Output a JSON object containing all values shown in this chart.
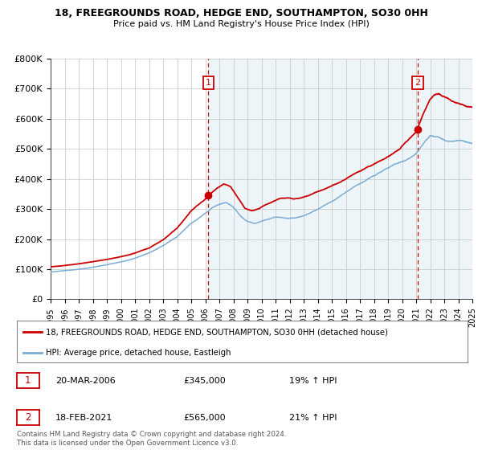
{
  "title": "18, FREEGROUNDS ROAD, HEDGE END, SOUTHAMPTON, SO30 0HH",
  "subtitle": "Price paid vs. HM Land Registry's House Price Index (HPI)",
  "legend_label_red": "18, FREEGROUNDS ROAD, HEDGE END, SOUTHAMPTON, SO30 0HH (detached house)",
  "legend_label_blue": "HPI: Average price, detached house, Eastleigh",
  "annotation1_date": "20-MAR-2006",
  "annotation1_price": "£345,000",
  "annotation1_hpi": "19% ↑ HPI",
  "annotation2_date": "18-FEB-2021",
  "annotation2_price": "£565,000",
  "annotation2_hpi": "21% ↑ HPI",
  "copyright": "Contains HM Land Registry data © Crown copyright and database right 2024.\nThis data is licensed under the Open Government Licence v3.0.",
  "red_color": "#cc0000",
  "blue_color": "#7aadd4",
  "blue_fill_color": "#ddeeff",
  "vline_color": "#cc0000",
  "grid_color": "#cccccc",
  "bg_color": "#ffffff",
  "annotation_box_color": "#cc0000",
  "ylim": [
    0,
    800000
  ],
  "yticks": [
    0,
    100000,
    200000,
    300000,
    400000,
    500000,
    600000,
    700000,
    800000
  ],
  "ytick_labels": [
    "£0",
    "£100K",
    "£200K",
    "£300K",
    "£400K",
    "£500K",
    "£600K",
    "£700K",
    "£800K"
  ],
  "xtick_years": [
    1995,
    1996,
    1997,
    1998,
    1999,
    2000,
    2001,
    2002,
    2003,
    2004,
    2005,
    2006,
    2007,
    2008,
    2009,
    2010,
    2011,
    2012,
    2013,
    2014,
    2015,
    2016,
    2017,
    2018,
    2019,
    2020,
    2021,
    2022,
    2023,
    2024,
    2025
  ],
  "sale1_x": 2006.22,
  "sale1_y": 345000,
  "sale2_x": 2021.12,
  "sale2_y": 565000,
  "vline1_x": 2006.22,
  "vline2_x": 2021.12,
  "xlim": [
    1995,
    2025
  ]
}
